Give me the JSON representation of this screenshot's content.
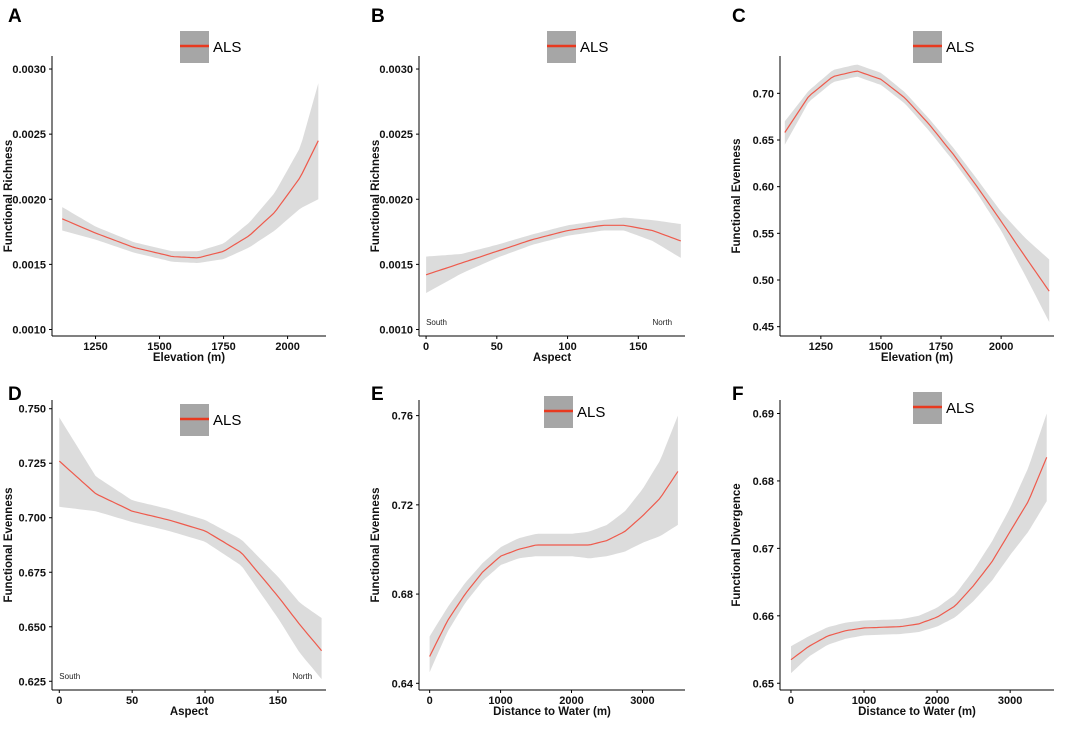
{
  "chart_data": [
    {
      "panel_label": "A",
      "type": "line",
      "xlabel": "Elevation (m)",
      "ylabel": "Functional Richness",
      "legend": [
        "ALS"
      ],
      "xlim": [
        1080,
        2150
      ],
      "ylim": [
        0.00095,
        0.0031
      ],
      "xticks": [
        1250,
        1500,
        1750,
        2000
      ],
      "yticks": [
        0.001,
        0.0015,
        0.002,
        0.0025,
        0.003
      ],
      "ytick_labels": [
        "0.0010",
        "0.0015",
        "0.0020",
        "0.0025",
        "0.0030"
      ],
      "annotations": [],
      "series": [
        {
          "name": "ALS",
          "x": [
            1120,
            1250,
            1400,
            1550,
            1650,
            1750,
            1850,
            1950,
            2050,
            2120
          ],
          "y": [
            0.00185,
            0.00174,
            0.00163,
            0.00156,
            0.00155,
            0.0016,
            0.00172,
            0.0019,
            0.00217,
            0.00245
          ],
          "lower": [
            0.00176,
            0.00169,
            0.00159,
            0.00152,
            0.00151,
            0.00154,
            0.00163,
            0.00176,
            0.00193,
            0.002
          ],
          "upper": [
            0.00194,
            0.00179,
            0.00167,
            0.0016,
            0.0016,
            0.00166,
            0.00182,
            0.00205,
            0.0024,
            0.00289
          ]
        }
      ]
    },
    {
      "panel_label": "B",
      "type": "line",
      "xlabel": "Aspect",
      "ylabel": "Functional Richness",
      "legend": [
        "ALS"
      ],
      "xlim": [
        -5,
        183
      ],
      "ylim": [
        0.00095,
        0.0031
      ],
      "xticks": [
        0,
        50,
        100,
        150
      ],
      "yticks": [
        0.001,
        0.0015,
        0.002,
        0.0025,
        0.003
      ],
      "ytick_labels": [
        "0.0010",
        "0.0015",
        "0.0020",
        "0.0025",
        "0.0030"
      ],
      "annotations": [
        {
          "text": "South",
          "x": 0
        },
        {
          "text": "North",
          "x": 160
        }
      ],
      "series": [
        {
          "name": "ALS",
          "x": [
            0,
            25,
            50,
            75,
            100,
            125,
            140,
            160,
            180
          ],
          "y": [
            0.00142,
            0.00151,
            0.0016,
            0.00169,
            0.00176,
            0.0018,
            0.0018,
            0.00176,
            0.00168
          ],
          "lower": [
            0.00128,
            0.00143,
            0.00155,
            0.00165,
            0.00172,
            0.00176,
            0.00176,
            0.00168,
            0.00155
          ],
          "upper": [
            0.00156,
            0.00158,
            0.00165,
            0.00173,
            0.0018,
            0.00184,
            0.00186,
            0.00184,
            0.00181
          ]
        }
      ]
    },
    {
      "panel_label": "C",
      "type": "line",
      "xlabel": "Elevation (m)",
      "ylabel": "Functional Evenness",
      "legend": [
        "ALS"
      ],
      "xlim": [
        1080,
        2220
      ],
      "ylim": [
        0.44,
        0.74
      ],
      "xticks": [
        1250,
        1500,
        1750,
        2000
      ],
      "yticks": [
        0.45,
        0.5,
        0.55,
        0.6,
        0.65,
        0.7
      ],
      "ytick_labels": [
        "0.45",
        "0.50",
        "0.55",
        "0.60",
        "0.65",
        "0.70"
      ],
      "annotations": [],
      "series": [
        {
          "name": "ALS",
          "x": [
            1100,
            1200,
            1300,
            1400,
            1500,
            1600,
            1700,
            1800,
            1900,
            2000,
            2100,
            2200
          ],
          "y": [
            0.658,
            0.697,
            0.718,
            0.724,
            0.715,
            0.695,
            0.667,
            0.635,
            0.6,
            0.563,
            0.525,
            0.488
          ],
          "lower": [
            0.645,
            0.691,
            0.712,
            0.718,
            0.709,
            0.689,
            0.66,
            0.628,
            0.593,
            0.553,
            0.505,
            0.455
          ],
          "upper": [
            0.67,
            0.703,
            0.725,
            0.731,
            0.722,
            0.701,
            0.673,
            0.642,
            0.608,
            0.573,
            0.545,
            0.522
          ]
        }
      ]
    },
    {
      "panel_label": "D",
      "type": "line",
      "xlabel": "Aspect",
      "ylabel": "Functional Evenness",
      "legend": [
        "ALS"
      ],
      "xlim": [
        -5,
        183
      ],
      "ylim": [
        0.621,
        0.754
      ],
      "xticks": [
        0,
        50,
        100,
        150
      ],
      "yticks": [
        0.625,
        0.65,
        0.675,
        0.7,
        0.725,
        0.75
      ],
      "ytick_labels": [
        "0.625",
        "0.650",
        "0.675",
        "0.700",
        "0.725",
        "0.750"
      ],
      "annotations": [
        {
          "text": "South",
          "x": 0
        },
        {
          "text": "North",
          "x": 160
        }
      ],
      "series": [
        {
          "name": "ALS",
          "x": [
            0,
            25,
            50,
            75,
            100,
            125,
            150,
            165,
            180
          ],
          "y": [
            0.726,
            0.711,
            0.703,
            0.699,
            0.694,
            0.684,
            0.664,
            0.651,
            0.639
          ],
          "lower": [
            0.705,
            0.703,
            0.698,
            0.694,
            0.689,
            0.678,
            0.654,
            0.638,
            0.626
          ],
          "upper": [
            0.746,
            0.719,
            0.708,
            0.704,
            0.699,
            0.69,
            0.673,
            0.661,
            0.654
          ]
        }
      ]
    },
    {
      "panel_label": "E",
      "type": "line",
      "xlabel": "Distance to Water (m)",
      "ylabel": "Functional Evenness",
      "legend": [
        "ALS"
      ],
      "xlim": [
        -150,
        3600
      ],
      "ylim": [
        0.637,
        0.767
      ],
      "xticks": [
        0,
        1000,
        2000,
        3000
      ],
      "yticks": [
        0.64,
        0.68,
        0.72,
        0.76
      ],
      "ytick_labels": [
        "0.64",
        "0.68",
        "0.72",
        "0.76"
      ],
      "annotations": [],
      "series": [
        {
          "name": "ALS",
          "x": [
            0,
            250,
            500,
            750,
            1000,
            1250,
            1500,
            1750,
            2000,
            2250,
            2500,
            2750,
            3000,
            3250,
            3500
          ],
          "y": [
            0.652,
            0.668,
            0.68,
            0.69,
            0.697,
            0.7,
            0.702,
            0.702,
            0.702,
            0.702,
            0.704,
            0.708,
            0.715,
            0.723,
            0.735
          ],
          "lower": [
            0.645,
            0.663,
            0.676,
            0.686,
            0.693,
            0.696,
            0.697,
            0.697,
            0.697,
            0.696,
            0.697,
            0.699,
            0.703,
            0.706,
            0.711
          ],
          "upper": [
            0.661,
            0.674,
            0.685,
            0.694,
            0.701,
            0.705,
            0.707,
            0.707,
            0.707,
            0.708,
            0.711,
            0.717,
            0.727,
            0.74,
            0.76
          ]
        }
      ]
    },
    {
      "panel_label": "F",
      "type": "line",
      "xlabel": "Distance to Water (m)",
      "ylabel": "Functional Divergence",
      "legend": [
        "ALS"
      ],
      "xlim": [
        -150,
        3600
      ],
      "ylim": [
        0.649,
        0.692
      ],
      "xticks": [
        0,
        1000,
        2000,
        3000
      ],
      "yticks": [
        0.65,
        0.66,
        0.67,
        0.68,
        0.69
      ],
      "ytick_labels": [
        "0.65",
        "0.66",
        "0.67",
        "0.68",
        "0.69"
      ],
      "annotations": [],
      "series": [
        {
          "name": "ALS",
          "x": [
            0,
            250,
            500,
            750,
            1000,
            1250,
            1500,
            1750,
            2000,
            2250,
            2500,
            2750,
            3000,
            3250,
            3500
          ],
          "y": [
            0.6535,
            0.6555,
            0.657,
            0.6578,
            0.6582,
            0.6583,
            0.6584,
            0.6588,
            0.6598,
            0.6615,
            0.6645,
            0.668,
            0.6725,
            0.677,
            0.6835
          ],
          "lower": [
            0.6515,
            0.654,
            0.6557,
            0.6566,
            0.6571,
            0.6572,
            0.6573,
            0.6576,
            0.6584,
            0.6598,
            0.6622,
            0.6652,
            0.669,
            0.6725,
            0.677
          ],
          "upper": [
            0.6555,
            0.657,
            0.6583,
            0.659,
            0.6593,
            0.6594,
            0.6595,
            0.66,
            0.6612,
            0.6632,
            0.6668,
            0.671,
            0.676,
            0.682,
            0.69
          ]
        }
      ]
    }
  ]
}
